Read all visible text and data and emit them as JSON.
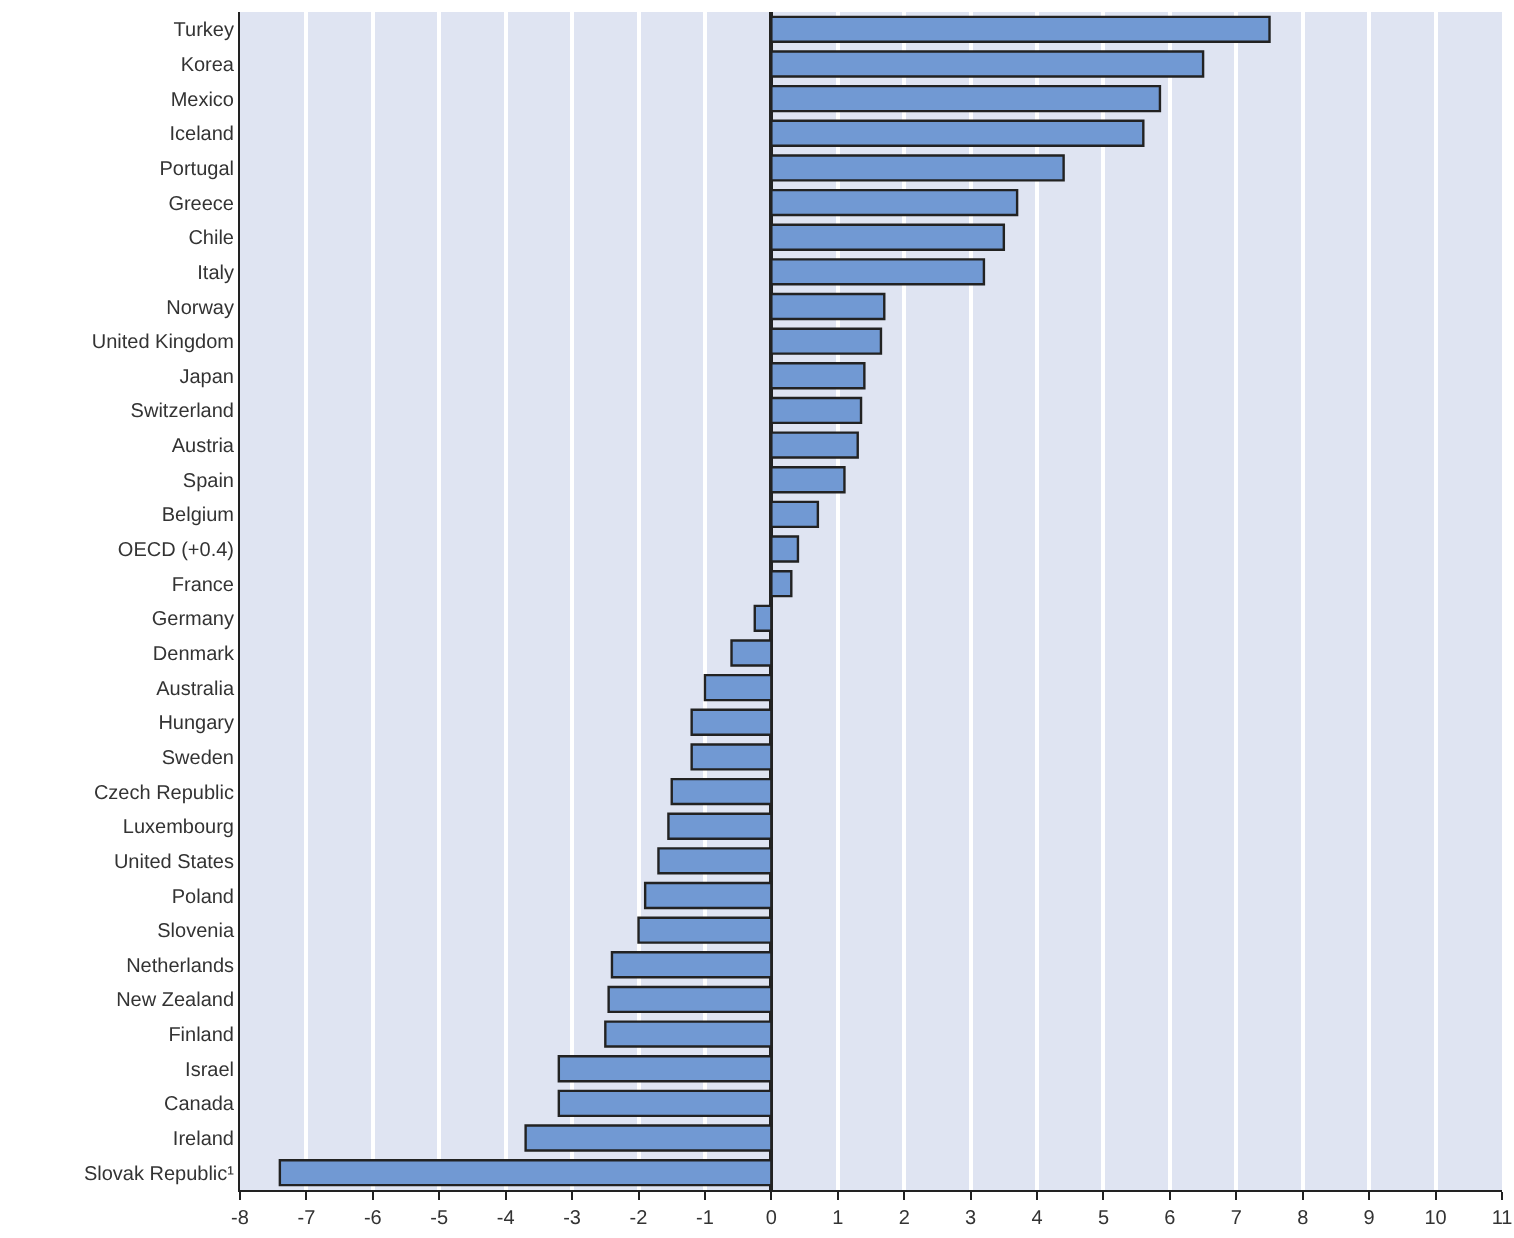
{
  "chart_data": {
    "type": "bar",
    "orientation": "horizontal",
    "categories": [
      "Turkey",
      "Korea",
      "Mexico",
      "Iceland",
      "Portugal",
      "Greece",
      "Chile",
      "Italy",
      "Norway",
      "United Kingdom",
      "Japan",
      "Switzerland",
      "Austria",
      "Spain",
      "Belgium",
      "OECD (+0.4)",
      "France",
      "Germany",
      "Denmark",
      "Australia",
      "Hungary",
      "Sweden",
      "Czech Republic",
      "Luxembourg",
      "United States",
      "Poland",
      "Slovenia",
      "Netherlands",
      "New Zealand",
      "Finland",
      "Israel",
      "Canada",
      "Ireland",
      "Slovak Republic¹"
    ],
    "values": [
      7.5,
      6.5,
      5.85,
      5.6,
      4.4,
      3.7,
      3.5,
      3.2,
      1.7,
      1.65,
      1.4,
      1.35,
      1.3,
      1.1,
      0.7,
      0.4,
      0.3,
      -0.25,
      -0.6,
      -1.0,
      -1.2,
      -1.2,
      -1.5,
      -1.55,
      -1.7,
      -1.9,
      -2.0,
      -2.4,
      -2.45,
      -2.5,
      -3.2,
      -3.2,
      -3.7,
      -7.4
    ],
    "color": "#7199d3",
    "xlim": [
      -8,
      11
    ],
    "xticks": [
      -8,
      -7,
      -6,
      -5,
      -4,
      -3,
      -2,
      -1,
      0,
      1,
      2,
      3,
      4,
      5,
      6,
      7,
      8,
      9,
      10,
      11
    ],
    "grid": "x"
  }
}
